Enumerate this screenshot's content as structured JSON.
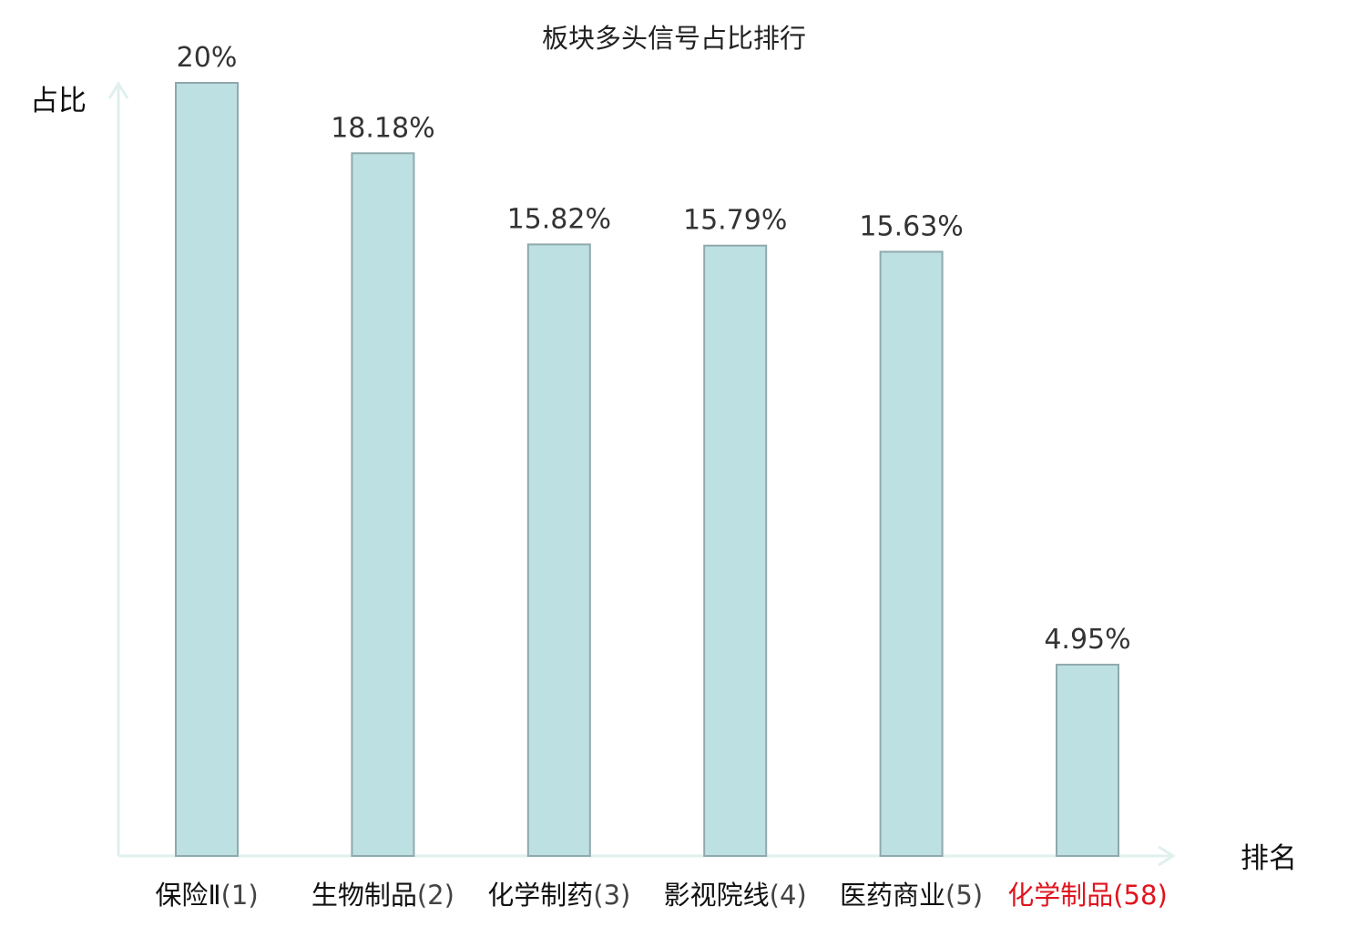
{
  "chart_data": {
    "type": "bar",
    "title": "板块多头信号占比排行",
    "ylabel": "占比",
    "xlabel": "排名",
    "categories": [
      {
        "name": "保险Ⅱ",
        "rank": "(1)",
        "highlight": false
      },
      {
        "name": "生物制品",
        "rank": "(2)",
        "highlight": false
      },
      {
        "name": "化学制药",
        "rank": "(3)",
        "highlight": false
      },
      {
        "name": "影视院线",
        "rank": "(4)",
        "highlight": false
      },
      {
        "name": "医药商业",
        "rank": "(5)",
        "highlight": false
      },
      {
        "name": "化学制品",
        "rank": "(58)",
        "highlight": true
      }
    ],
    "values": [
      20,
      18.18,
      15.82,
      15.79,
      15.63,
      4.95
    ],
    "value_labels": [
      "20%",
      "18.18%",
      "15.82%",
      "15.79%",
      "15.63%",
      "4.95%"
    ],
    "ylim": [
      0,
      20
    ],
    "grid": false,
    "colors": {
      "bar_fill": "#bde0e3",
      "bar_stroke": "#8fa9ac",
      "axis": "#dff0ee",
      "highlight": "#e0141e",
      "normal_text": "#111111",
      "rank_text": "#444444"
    }
  }
}
